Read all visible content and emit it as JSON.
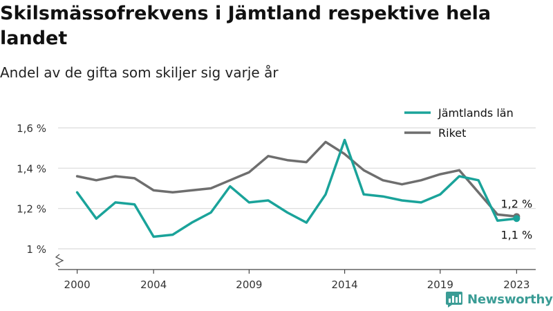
{
  "title": "Skilsmässofrekvens i Jämtland respektive hela landet",
  "subtitle": "Andel av de gifta som skiljer sig varje år",
  "brand": {
    "name": "Newsworthy",
    "icon": "bar-chart-speech-bubble-icon",
    "color": "#3a9c95"
  },
  "chart_data": {
    "type": "line",
    "title": "Skilsmässofrekvens i Jämtland respektive hela landet",
    "subtitle": "Andel av de gifta som skiljer sig varje år",
    "xlabel": "",
    "ylabel": "",
    "xlim": [
      1999,
      2024
    ],
    "ylim": [
      1.0,
      1.6
    ],
    "y_axis_break": true,
    "grid": true,
    "legend": "top-right",
    "x_ticks": [
      {
        "value": 2000,
        "label": "2000"
      },
      {
        "value": 2004,
        "label": "2004"
      },
      {
        "value": 2009,
        "label": "2009"
      },
      {
        "value": 2014,
        "label": "2014"
      },
      {
        "value": 2019,
        "label": "2019"
      },
      {
        "value": 2023,
        "label": "2023"
      }
    ],
    "y_ticks": [
      {
        "value": 1.0,
        "label": "1 %"
      },
      {
        "value": 1.2,
        "label": "1,2 %"
      },
      {
        "value": 1.4,
        "label": "1,4 %"
      },
      {
        "value": 1.6,
        "label": "1,6 %"
      }
    ],
    "x": [
      2000,
      2001,
      2002,
      2003,
      2004,
      2005,
      2006,
      2007,
      2008,
      2009,
      2010,
      2011,
      2012,
      2013,
      2014,
      2015,
      2016,
      2017,
      2018,
      2019,
      2020,
      2021,
      2022,
      2023
    ],
    "series": [
      {
        "name": "Jämtlands län",
        "color": "#1aa39a",
        "values": [
          1.28,
          1.15,
          1.23,
          1.22,
          1.06,
          1.07,
          1.13,
          1.18,
          1.31,
          1.23,
          1.24,
          1.18,
          1.13,
          1.27,
          1.54,
          1.27,
          1.26,
          1.24,
          1.23,
          1.27,
          1.36,
          1.34,
          1.14,
          1.15
        ],
        "end_label": "1,1 %"
      },
      {
        "name": "Riket",
        "color": "#6e6e6e",
        "values": [
          1.36,
          1.34,
          1.36,
          1.35,
          1.29,
          1.28,
          1.29,
          1.3,
          1.34,
          1.38,
          1.46,
          1.44,
          1.43,
          1.53,
          1.47,
          1.39,
          1.34,
          1.32,
          1.34,
          1.37,
          1.39,
          1.28,
          1.17,
          1.16
        ],
        "end_label": "1,2 %"
      }
    ]
  }
}
